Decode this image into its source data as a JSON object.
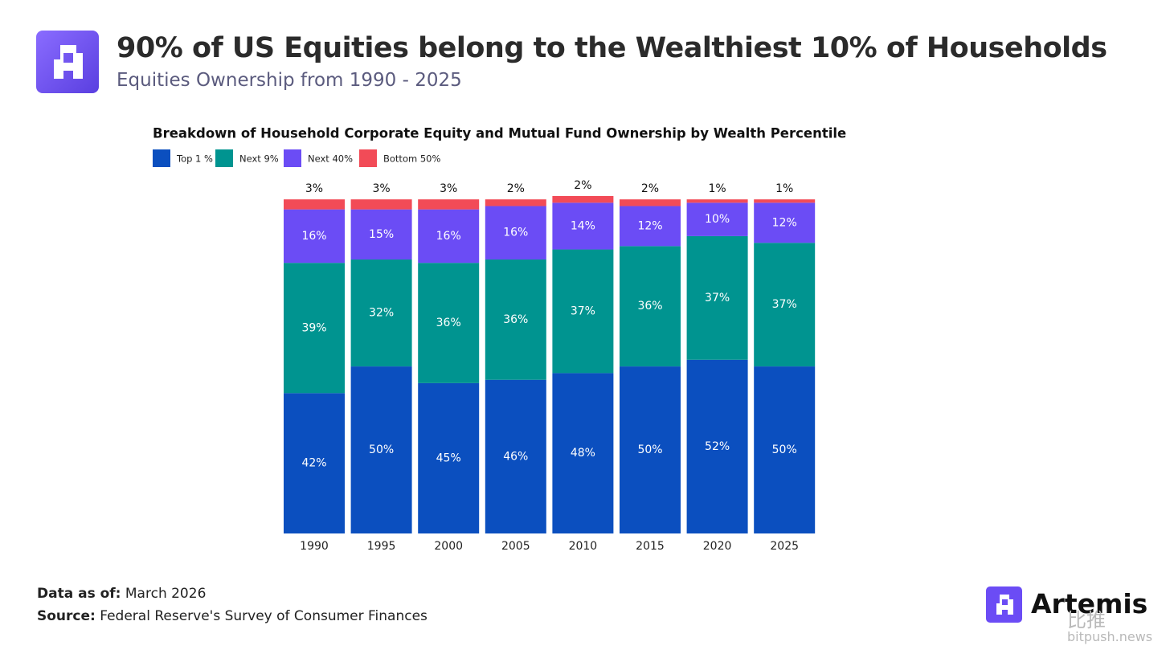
{
  "header": {
    "title": "90% of US Equities belong to the Wealthiest 10% of Households",
    "subtitle": "Equities Ownership from 1990 - 2025"
  },
  "chart_data": {
    "type": "stacked_bar",
    "title": "Breakdown of Household Corporate Equity and Mutual Fund Ownership by Wealth Percentile",
    "categories": [
      "1990",
      "1995",
      "2000",
      "2005",
      "2010",
      "2015",
      "2020",
      "2025"
    ],
    "series": [
      {
        "name": "Top 1 %",
        "color": "#0b4fbf",
        "values": [
          42,
          50,
          45,
          46,
          48,
          50,
          52,
          50
        ],
        "value_labels": [
          "42%",
          "50%",
          "45%",
          "46%",
          "48%",
          "50%",
          "52%",
          "50%"
        ]
      },
      {
        "name": "Next 9%",
        "color": "#009490",
        "values": [
          39,
          32,
          36,
          36,
          37,
          36,
          37,
          37
        ],
        "value_labels": [
          "39%",
          "32%",
          "36%",
          "36%",
          "37%",
          "36%",
          "37%",
          "37%"
        ]
      },
      {
        "name": "Next 40%",
        "color": "#6b4cf5",
        "values": [
          16,
          15,
          16,
          16,
          14,
          12,
          10,
          12
        ],
        "value_labels": [
          "16%",
          "15%",
          "16%",
          "16%",
          "14%",
          "12%",
          "10%",
          "12%"
        ]
      },
      {
        "name": "Bottom 50%",
        "color": "#f24b57",
        "values": [
          3,
          3,
          3,
          2,
          2,
          2,
          1,
          1
        ],
        "value_labels": [
          "3%",
          "3%",
          "3%",
          "2%",
          "2%",
          "2%",
          "1%",
          "1%"
        ]
      }
    ],
    "legend": "top-left"
  },
  "footer": {
    "data_as_of_label": "Data as of:",
    "data_as_of": "March 2026",
    "source_label": "Source:",
    "source": "Federal Reserve's Survey of Consumer Finances"
  },
  "brand": "Artemis",
  "watermark": {
    "cn": "比推",
    "site": "bitpush.news"
  }
}
